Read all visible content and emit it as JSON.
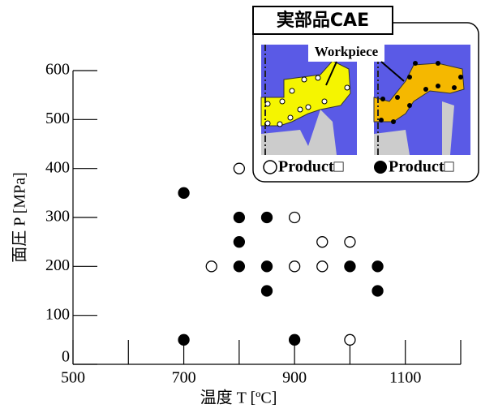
{
  "chart_data": {
    "type": "scatter",
    "xlabel": "温度 T [ºC]",
    "ylabel": "面圧 P [MPa]",
    "xlim": [
      500,
      1200
    ],
    "ylim": [
      0,
      600
    ],
    "xticks": [
      500,
      700,
      900,
      1100
    ],
    "minor_xticks": [
      600,
      800,
      1000,
      1200
    ],
    "yticks": [
      0,
      100,
      200,
      300,
      400,
      500,
      600
    ],
    "series": [
      {
        "name": "Product□",
        "color": "#ffffff",
        "x": [
          800,
          750,
          900,
          900,
          950,
          950,
          1000,
          1000
        ],
        "values": [
          400,
          200,
          300,
          200,
          250,
          200,
          250,
          50
        ]
      },
      {
        "name": "Product□",
        "color": "#000000",
        "x": [
          700,
          800,
          850,
          800,
          800,
          850,
          850,
          1000,
          1050,
          1050,
          700,
          900
        ],
        "values": [
          350,
          300,
          300,
          250,
          200,
          200,
          150,
          200,
          200,
          150,
          50,
          50
        ]
      }
    ],
    "inset_title": "実部品CAE",
    "inset_label": "Workpiece"
  }
}
